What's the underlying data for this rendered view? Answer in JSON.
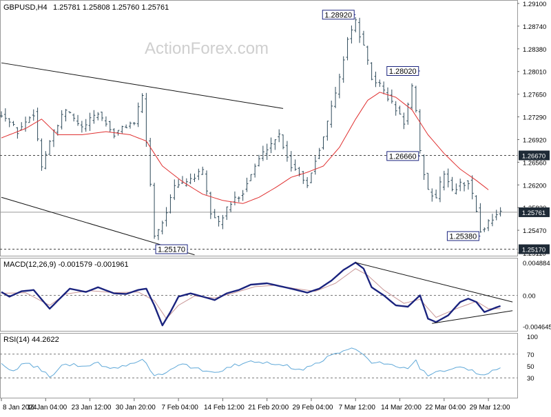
{
  "header": {
    "symbol": "GBPUSD,H4",
    "ohlc": "1.25781 1.25808 1.25760 1.25761",
    "watermark": "ActionForex.com"
  },
  "colors": {
    "price": "#2e4a5a",
    "sma": "#e03030",
    "macd": "#1a237e",
    "signal": "#c89696",
    "rsi": "#5fa8d8",
    "label_border": "#1a237e",
    "level_fill": "#1e2a36",
    "trend": "#111111",
    "frame": "#999999"
  },
  "chart_data": [
    {
      "panel": "price",
      "type": "ohlc-bar",
      "title": "GBPUSD,H4",
      "ylim": [
        1.2511,
        1.291
      ],
      "y_ticks": [
        "1.29100",
        "1.28740",
        "1.28380",
        "1.28010",
        "1.27650",
        "1.27290",
        "1.26920",
        "1.26560",
        "1.26200",
        "1.25830",
        "1.25470",
        "1.25110"
      ],
      "x_ticks": [
        "8 Jan 2024",
        "16 Jan 04:00",
        "23 Jan 12:00",
        "30 Jan 20:00",
        "7 Feb 04:00",
        "14 Feb 12:00",
        "21 Feb 20:00",
        "29 Feb 04:00",
        "7 Mar 12:00",
        "14 Mar 20:00",
        "22 Mar 04:00",
        "29 Mar 12:00"
      ],
      "x_positions": [
        0,
        11,
        22,
        33,
        44,
        55,
        66,
        77,
        88,
        99,
        110,
        121
      ],
      "n_points": 129,
      "close_anchors": [
        [
          0,
          1.2735
        ],
        [
          4,
          1.2705
        ],
        [
          8,
          1.2735
        ],
        [
          10,
          1.265
        ],
        [
          12,
          1.269
        ],
        [
          16,
          1.274
        ],
        [
          20,
          1.271
        ],
        [
          24,
          1.2735
        ],
        [
          28,
          1.27
        ],
        [
          31,
          1.2715
        ],
        [
          33,
          1.272
        ],
        [
          35,
          1.276
        ],
        [
          37,
          1.262
        ],
        [
          38,
          1.254
        ],
        [
          40,
          1.256
        ],
        [
          43,
          1.2615
        ],
        [
          47,
          1.263
        ],
        [
          50,
          1.264
        ],
        [
          52,
          1.2575
        ],
        [
          54,
          1.256
        ],
        [
          57,
          1.259
        ],
        [
          60,
          1.261
        ],
        [
          63,
          1.265
        ],
        [
          66,
          1.268
        ],
        [
          69,
          1.27
        ],
        [
          72,
          1.265
        ],
        [
          74,
          1.264
        ],
        [
          76,
          1.262
        ],
        [
          78,
          1.266
        ],
        [
          81,
          1.272
        ],
        [
          84,
          1.279
        ],
        [
          86,
          1.2855
        ],
        [
          88,
          1.288
        ],
        [
          90,
          1.284
        ],
        [
          92,
          1.279
        ],
        [
          94,
          1.278
        ],
        [
          96,
          1.276
        ],
        [
          98,
          1.274
        ],
        [
          100,
          1.272
        ],
        [
          102,
          1.2775
        ],
        [
          103,
          1.2735
        ],
        [
          104,
          1.267
        ],
        [
          106,
          1.261
        ],
        [
          108,
          1.26
        ],
        [
          110,
          1.264
        ],
        [
          112,
          1.261
        ],
        [
          114,
          1.262
        ],
        [
          116,
          1.2625
        ],
        [
          118,
          1.258
        ],
        [
          119,
          1.2545
        ],
        [
          121,
          1.256
        ],
        [
          123,
          1.2575
        ],
        [
          124,
          1.2576
        ]
      ],
      "sma_anchors": [
        [
          0,
          1.2695
        ],
        [
          6,
          1.271
        ],
        [
          10,
          1.2725
        ],
        [
          14,
          1.27
        ],
        [
          20,
          1.27
        ],
        [
          26,
          1.2705
        ],
        [
          32,
          1.27
        ],
        [
          36,
          1.269
        ],
        [
          40,
          1.265
        ],
        [
          45,
          1.2625
        ],
        [
          50,
          1.2605
        ],
        [
          55,
          1.2595
        ],
        [
          60,
          1.259
        ],
        [
          64,
          1.26
        ],
        [
          68,
          1.2615
        ],
        [
          72,
          1.2632
        ],
        [
          76,
          1.264
        ],
        [
          80,
          1.265
        ],
        [
          84,
          1.268
        ],
        [
          88,
          1.2725
        ],
        [
          91,
          1.2755
        ],
        [
          94,
          1.2768
        ],
        [
          98,
          1.276
        ],
        [
          102,
          1.274
        ],
        [
          106,
          1.27
        ],
        [
          110,
          1.267
        ],
        [
          114,
          1.2645
        ],
        [
          118,
          1.2627
        ],
        [
          121,
          1.2612
        ]
      ],
      "trendlines": [
        {
          "from": [
            0,
            1.2815
          ],
          "to": [
            70,
            1.2742
          ]
        },
        {
          "from": [
            0,
            1.26
          ],
          "to": [
            48,
            1.2508
          ]
        }
      ],
      "hlines": [
        {
          "value": 1.2667,
          "style": "dashed"
        },
        {
          "value": 1.25761,
          "style": "solid"
        },
        {
          "value": 1.2517,
          "style": "dashed"
        }
      ],
      "price_labels": [
        {
          "text": "1.28920",
          "at": [
            88,
            1.2892
          ],
          "side": "left"
        },
        {
          "text": "1.28020",
          "at": [
            104,
            1.2802
          ],
          "side": "left"
        },
        {
          "text": "1.26660",
          "at": [
            104,
            1.2666
          ],
          "side": "left"
        },
        {
          "text": "1.25380",
          "at": [
            119,
            1.2538
          ],
          "side": "left"
        },
        {
          "text": "1.25170",
          "at": [
            38,
            1.2517
          ],
          "side": "right"
        }
      ],
      "axis_labels": [
        {
          "text": "1.26670",
          "value": 1.2667
        },
        {
          "text": "1.25761",
          "value": 1.25761
        },
        {
          "text": "1.25170",
          "value": 1.2517
        }
      ]
    },
    {
      "panel": "macd",
      "type": "line",
      "title": "MACD(12,26,9) -0.001579 -0.001961",
      "ylim": [
        -0.0049,
        0.0051
      ],
      "y_ticks": [
        "0.004884",
        "0.00",
        "-0.004645"
      ],
      "y_tick_values": [
        0.004884,
        0.0,
        -0.004645
      ],
      "zero_line": 0.0,
      "macd_anchors": [
        [
          0,
          0.0005
        ],
        [
          2,
          -0.0002
        ],
        [
          5,
          0.0006
        ],
        [
          8,
          0.0008
        ],
        [
          12,
          -0.002
        ],
        [
          14,
          -0.0008
        ],
        [
          17,
          0.001
        ],
        [
          21,
          0.0005
        ],
        [
          24,
          0.0012
        ],
        [
          28,
          0.0003
        ],
        [
          31,
          0.0002
        ],
        [
          34,
          0.0008
        ],
        [
          36,
          0.001
        ],
        [
          38,
          -0.0015
        ],
        [
          40,
          -0.0045
        ],
        [
          42,
          -0.0025
        ],
        [
          44,
          -0.0002
        ],
        [
          47,
          0.0003
        ],
        [
          50,
          -0.0002
        ],
        [
          53,
          -0.0007
        ],
        [
          56,
          0.0003
        ],
        [
          59,
          0.0008
        ],
        [
          62,
          0.0016
        ],
        [
          66,
          0.0018
        ],
        [
          69,
          0.0014
        ],
        [
          72,
          0.001
        ],
        [
          76,
          0.0004
        ],
        [
          79,
          0.001
        ],
        [
          82,
          0.0022
        ],
        [
          85,
          0.0038
        ],
        [
          88,
          0.0049
        ],
        [
          90,
          0.004
        ],
        [
          92,
          0.0012
        ],
        [
          95,
          0.0
        ],
        [
          98,
          -0.0015
        ],
        [
          101,
          -0.0017
        ],
        [
          104,
          0.0
        ],
        [
          106,
          -0.0035
        ],
        [
          108,
          -0.004
        ],
        [
          111,
          -0.003
        ],
        [
          114,
          -0.001
        ],
        [
          116,
          -0.0005
        ],
        [
          118,
          -0.001
        ],
        [
          120,
          -0.0025
        ],
        [
          123,
          -0.0018
        ],
        [
          124,
          -0.0016
        ]
      ],
      "signal_anchors": [
        [
          0,
          0.0003
        ],
        [
          6,
          0.0004
        ],
        [
          12,
          -0.0015
        ],
        [
          16,
          0.0002
        ],
        [
          22,
          0.0007
        ],
        [
          28,
          0.0004
        ],
        [
          34,
          0.0005
        ],
        [
          38,
          -0.0008
        ],
        [
          41,
          -0.0035
        ],
        [
          44,
          -0.0015
        ],
        [
          48,
          -0.0001
        ],
        [
          53,
          -0.0004
        ],
        [
          58,
          0.0004
        ],
        [
          63,
          0.0013
        ],
        [
          68,
          0.0015
        ],
        [
          73,
          0.001
        ],
        [
          78,
          0.0006
        ],
        [
          83,
          0.0018
        ],
        [
          88,
          0.004
        ],
        [
          91,
          0.003
        ],
        [
          95,
          0.0008
        ],
        [
          100,
          -0.0012
        ],
        [
          104,
          -0.0006
        ],
        [
          108,
          -0.0033
        ],
        [
          113,
          -0.002
        ],
        [
          118,
          -0.0009
        ],
        [
          121,
          -0.002
        ],
        [
          124,
          -0.002
        ]
      ],
      "trendlines": [
        {
          "from": [
            88,
            0.0049
          ],
          "to": [
            127,
            -0.001
          ]
        },
        {
          "from": [
            107,
            -0.0042
          ],
          "to": [
            127,
            -0.0023
          ]
        }
      ]
    },
    {
      "panel": "rsi",
      "type": "line",
      "title": "RSI(14) 44.2622",
      "ylim": [
        0,
        100
      ],
      "y_ticks": [
        "100",
        "70",
        "50",
        "30"
      ],
      "y_tick_values": [
        100,
        70,
        50,
        30
      ],
      "levels": [
        70,
        30
      ],
      "rsi_anchors": [
        [
          0,
          52
        ],
        [
          3,
          40
        ],
        [
          6,
          56
        ],
        [
          9,
          48
        ],
        [
          12,
          32
        ],
        [
          15,
          50
        ],
        [
          18,
          52
        ],
        [
          21,
          48
        ],
        [
          24,
          56
        ],
        [
          27,
          44
        ],
        [
          30,
          50
        ],
        [
          33,
          55
        ],
        [
          35,
          60
        ],
        [
          38,
          36
        ],
        [
          40,
          34
        ],
        [
          42,
          45
        ],
        [
          45,
          52
        ],
        [
          48,
          46
        ],
        [
          51,
          42
        ],
        [
          54,
          40
        ],
        [
          57,
          50
        ],
        [
          60,
          54
        ],
        [
          63,
          58
        ],
        [
          66,
          56
        ],
        [
          69,
          54
        ],
        [
          72,
          48
        ],
        [
          75,
          44
        ],
        [
          78,
          54
        ],
        [
          81,
          64
        ],
        [
          84,
          72
        ],
        [
          86,
          78
        ],
        [
          88,
          80
        ],
        [
          90,
          68
        ],
        [
          92,
          56
        ],
        [
          95,
          56
        ],
        [
          98,
          48
        ],
        [
          101,
          44
        ],
        [
          103,
          62
        ],
        [
          104,
          44
        ],
        [
          106,
          36
        ],
        [
          108,
          40
        ],
        [
          111,
          42
        ],
        [
          114,
          46
        ],
        [
          117,
          42
        ],
        [
          119,
          34
        ],
        [
          121,
          40
        ],
        [
          123,
          44
        ],
        [
          124,
          44
        ]
      ]
    }
  ]
}
